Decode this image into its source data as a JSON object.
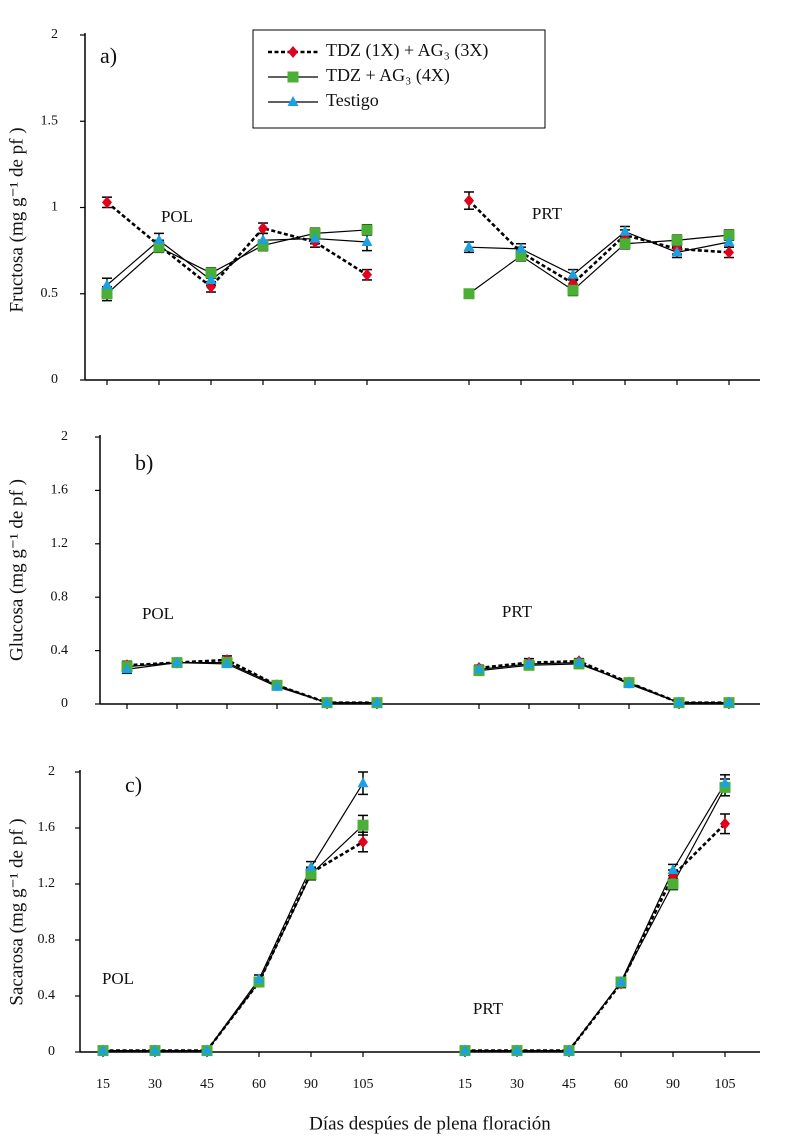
{
  "chart_data": [
    {
      "type": "line",
      "panel_label": "a)",
      "y_label": "Fructosa (mg g⁻¹ de pf )",
      "group_labels": [
        "POL",
        "PRT"
      ],
      "categories": [
        null,
        null,
        null,
        null,
        null,
        null,
        null,
        null,
        null,
        null,
        null,
        null
      ],
      "ylim": [
        0,
        2
      ],
      "yticks": [
        0,
        0.5,
        1,
        1.5,
        2
      ],
      "series": [
        {
          "name": "TDZ (1X) + AG₃  (3X)",
          "color": "#e3001b",
          "marker": "diamond",
          "line_style": "dashed",
          "values": [
            1.03,
            0.78,
            0.54,
            0.88,
            0.8,
            0.61,
            1.04,
            0.74,
            0.56,
            0.84,
            0.76,
            0.74
          ],
          "errors": [
            0.03,
            0.03,
            0.03,
            0.03,
            0.03,
            0.03,
            0.05,
            0.03,
            0.03,
            0.03,
            0.03,
            0.03
          ]
        },
        {
          "name": "TDZ + AG₃ (4X)",
          "color": "#4caf35",
          "marker": "square",
          "line_style": "solid",
          "values": [
            0.5,
            0.77,
            0.62,
            0.78,
            0.85,
            0.87,
            0.5,
            0.72,
            0.52,
            0.79,
            0.81,
            0.84
          ],
          "errors": [
            0.04,
            0.03,
            0.03,
            0.03,
            0.03,
            0.03,
            0.02,
            0.03,
            0.03,
            0.03,
            0.03,
            0.03
          ]
        },
        {
          "name": "Testigo",
          "color": "#1ba1e2",
          "marker": "triangle",
          "line_style": "solid",
          "values": [
            0.55,
            0.81,
            0.58,
            0.81,
            0.82,
            0.8,
            0.77,
            0.76,
            0.61,
            0.86,
            0.74,
            0.8
          ],
          "errors": [
            0.04,
            0.04,
            0.03,
            0.04,
            0.03,
            0.05,
            0.03,
            0.03,
            0.03,
            0.03,
            0.03,
            0.03
          ]
        }
      ]
    },
    {
      "type": "line",
      "panel_label": "b)",
      "y_label": "Glucosa (mg g⁻¹ de pf )",
      "group_labels": [
        "POL",
        "PRT"
      ],
      "categories": [
        null,
        null,
        null,
        null,
        null,
        null,
        null,
        null,
        null,
        null,
        null,
        null
      ],
      "ylim": [
        0,
        2
      ],
      "yticks": [
        0,
        0.4,
        0.8,
        1.2,
        1.6,
        2
      ],
      "series": [
        {
          "color": "#e3001b",
          "marker": "diamond",
          "line_style": "dashed",
          "values": [
            0.29,
            0.31,
            0.33,
            0.14,
            0.01,
            0.01,
            0.27,
            0.31,
            0.32,
            0.16,
            0.01,
            0.01
          ],
          "errors": [
            0.03,
            0.02,
            0.03,
            0.02,
            0.02,
            0.02,
            0.02,
            0.03,
            0.02,
            0.02,
            0.01,
            0.01
          ]
        },
        {
          "color": "#4caf35",
          "marker": "square",
          "line_style": "solid",
          "values": [
            0.28,
            0.31,
            0.31,
            0.14,
            0.01,
            0.01,
            0.25,
            0.29,
            0.3,
            0.16,
            0.01,
            0.01
          ],
          "errors": [
            0.03,
            0.02,
            0.02,
            0.02,
            0.02,
            0.02,
            0.02,
            0.02,
            0.02,
            0.02,
            0.01,
            0.01
          ]
        },
        {
          "color": "#1ba1e2",
          "marker": "triangle",
          "line_style": "solid",
          "values": [
            0.26,
            0.31,
            0.3,
            0.13,
            0.01,
            0.01,
            0.26,
            0.3,
            0.31,
            0.15,
            0.01,
            0.01
          ],
          "errors": [
            0.03,
            0.02,
            0.02,
            0.02,
            0.02,
            0.02,
            0.02,
            0.02,
            0.02,
            0.02,
            0.01,
            0.01
          ]
        }
      ]
    },
    {
      "type": "line",
      "panel_label": "c)",
      "y_label": "Sacarosa (mg g⁻¹ de pf )",
      "x_label": "Días despúes de plena floración",
      "group_labels": [
        "POL",
        "PRT"
      ],
      "categories": [
        "15",
        "30",
        "45",
        "60",
        "90",
        "105",
        "15",
        "30",
        "45",
        "60",
        "90",
        "105"
      ],
      "ylim": [
        0,
        2
      ],
      "yticks": [
        0,
        0.4,
        0.8,
        1.2,
        1.6,
        2
      ],
      "series": [
        {
          "color": "#e3001b",
          "marker": "diamond",
          "line_style": "dashed",
          "values": [
            0.01,
            0.01,
            0.01,
            0.5,
            1.28,
            1.5,
            0.01,
            0.01,
            0.01,
            0.49,
            1.26,
            1.63
          ],
          "errors": [
            0.01,
            0.01,
            0.01,
            0.03,
            0.04,
            0.07,
            0.01,
            0.01,
            0.01,
            0.03,
            0.04,
            0.07
          ]
        },
        {
          "color": "#4caf35",
          "marker": "square",
          "line_style": "solid",
          "values": [
            0.01,
            0.01,
            0.01,
            0.5,
            1.27,
            1.62,
            0.01,
            0.01,
            0.01,
            0.5,
            1.2,
            1.89
          ],
          "errors": [
            0.01,
            0.01,
            0.01,
            0.03,
            0.04,
            0.07,
            0.01,
            0.01,
            0.01,
            0.03,
            0.04,
            0.06
          ]
        },
        {
          "color": "#1ba1e2",
          "marker": "triangle",
          "line_style": "solid",
          "values": [
            0.01,
            0.01,
            0.01,
            0.52,
            1.32,
            1.92,
            0.01,
            0.01,
            0.01,
            0.5,
            1.3,
            1.92
          ],
          "errors": [
            0.01,
            0.01,
            0.01,
            0.03,
            0.04,
            0.08,
            0.01,
            0.01,
            0.01,
            0.03,
            0.04,
            0.06
          ]
        }
      ]
    }
  ]
}
